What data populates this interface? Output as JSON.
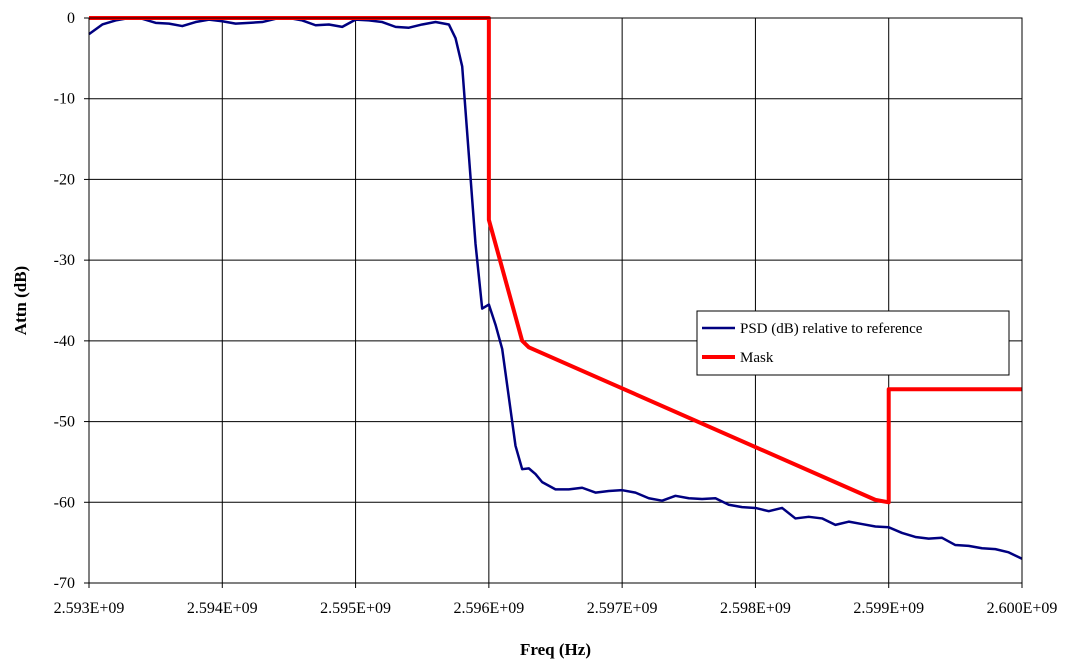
{
  "chart_data": {
    "type": "line",
    "title": "",
    "xlabel": "Freq (Hz)",
    "ylabel": "Attn (dB)",
    "xlim": [
      2593000000,
      2600000000
    ],
    "ylim": [
      -70,
      0
    ],
    "x_ticks": [
      2593000000,
      2594000000,
      2595000000,
      2596000000,
      2597000000,
      2598000000,
      2599000000,
      2600000000
    ],
    "x_tick_labels": [
      "2.593E+09",
      "2.594E+09",
      "2.595E+09",
      "2.596E+09",
      "2.597E+09",
      "2.598E+09",
      "2.599E+09",
      "2.600E+09"
    ],
    "y_ticks": [
      0,
      -10,
      -20,
      -30,
      -40,
      -50,
      -60,
      -70
    ],
    "y_tick_labels": [
      "0",
      "-10",
      "-20",
      "-30",
      "-40",
      "-50",
      "-60",
      "-70"
    ],
    "grid": true,
    "legend_position": "right-middle",
    "series": [
      {
        "name": "PSD (dB) relative to reference",
        "color": "#000080",
        "x": [
          2593000000,
          2593100000,
          2593200000,
          2593300000,
          2593400000,
          2593500000,
          2593600000,
          2593700000,
          2593800000,
          2593900000,
          2594000000,
          2594100000,
          2594200000,
          2594300000,
          2594400000,
          2594500000,
          2594600000,
          2594700000,
          2594800000,
          2594900000,
          2595000000,
          2595100000,
          2595200000,
          2595300000,
          2595400000,
          2595500000,
          2595600000,
          2595700000,
          2595750000,
          2595800000,
          2595850000,
          2595900000,
          2595950000,
          2596000000,
          2596050000,
          2596100000,
          2596150000,
          2596200000,
          2596250000,
          2596300000,
          2596350000,
          2596400000,
          2596500000,
          2596600000,
          2596700000,
          2596800000,
          2596900000,
          2597000000,
          2597100000,
          2597200000,
          2597300000,
          2597400000,
          2597500000,
          2597600000,
          2597700000,
          2597800000,
          2597900000,
          2598000000,
          2598100000,
          2598200000,
          2598300000,
          2598400000,
          2598500000,
          2598600000,
          2598700000,
          2598800000,
          2598900000,
          2599000000,
          2599100000,
          2599200000,
          2599300000,
          2599400000,
          2599500000,
          2599600000,
          2599700000,
          2599800000,
          2599900000,
          2600000000
        ],
        "y": [
          -2,
          -0.8,
          -0.3,
          0,
          -0.1,
          -0.6,
          -0.7,
          -1,
          -0.5,
          -0.2,
          -0.4,
          -0.7,
          -0.6,
          -0.5,
          -0.1,
          0,
          -0.3,
          -0.9,
          -0.8,
          -1.1,
          -0.2,
          -0.3,
          -0.5,
          -1.1,
          -1.2,
          -0.8,
          -0.5,
          -0.8,
          -2.5,
          -6,
          -17,
          -28,
          -36,
          -35.5,
          -38,
          -41,
          -47,
          -53,
          -55.9,
          -55.8,
          -56.5,
          -57.5,
          -58.4,
          -58.4,
          -58.2,
          -58.8,
          -58.6,
          -58.5,
          -58.8,
          -59.5,
          -59.8,
          -59.2,
          -59.5,
          -59.6,
          -59.5,
          -60.3,
          -60.6,
          -60.7,
          -61.1,
          -60.7,
          -62,
          -61.8,
          -62,
          -62.8,
          -62.4,
          -62.7,
          -63,
          -63.1,
          -63.8,
          -64.3,
          -64.5,
          -64.4,
          -65.3,
          -65.4,
          -65.7,
          -65.8,
          -66.2,
          -67
        ]
      },
      {
        "name": "Mask",
        "color": "#ff0000",
        "x": [
          2593000000,
          2596000000,
          2596000000,
          2596250000,
          2596300000,
          2598900000,
          2599000000,
          2599000000,
          2600000000
        ],
        "y": [
          0,
          0,
          -25,
          -40,
          -40.8,
          -59.7,
          -60,
          -46,
          -46
        ]
      }
    ]
  }
}
